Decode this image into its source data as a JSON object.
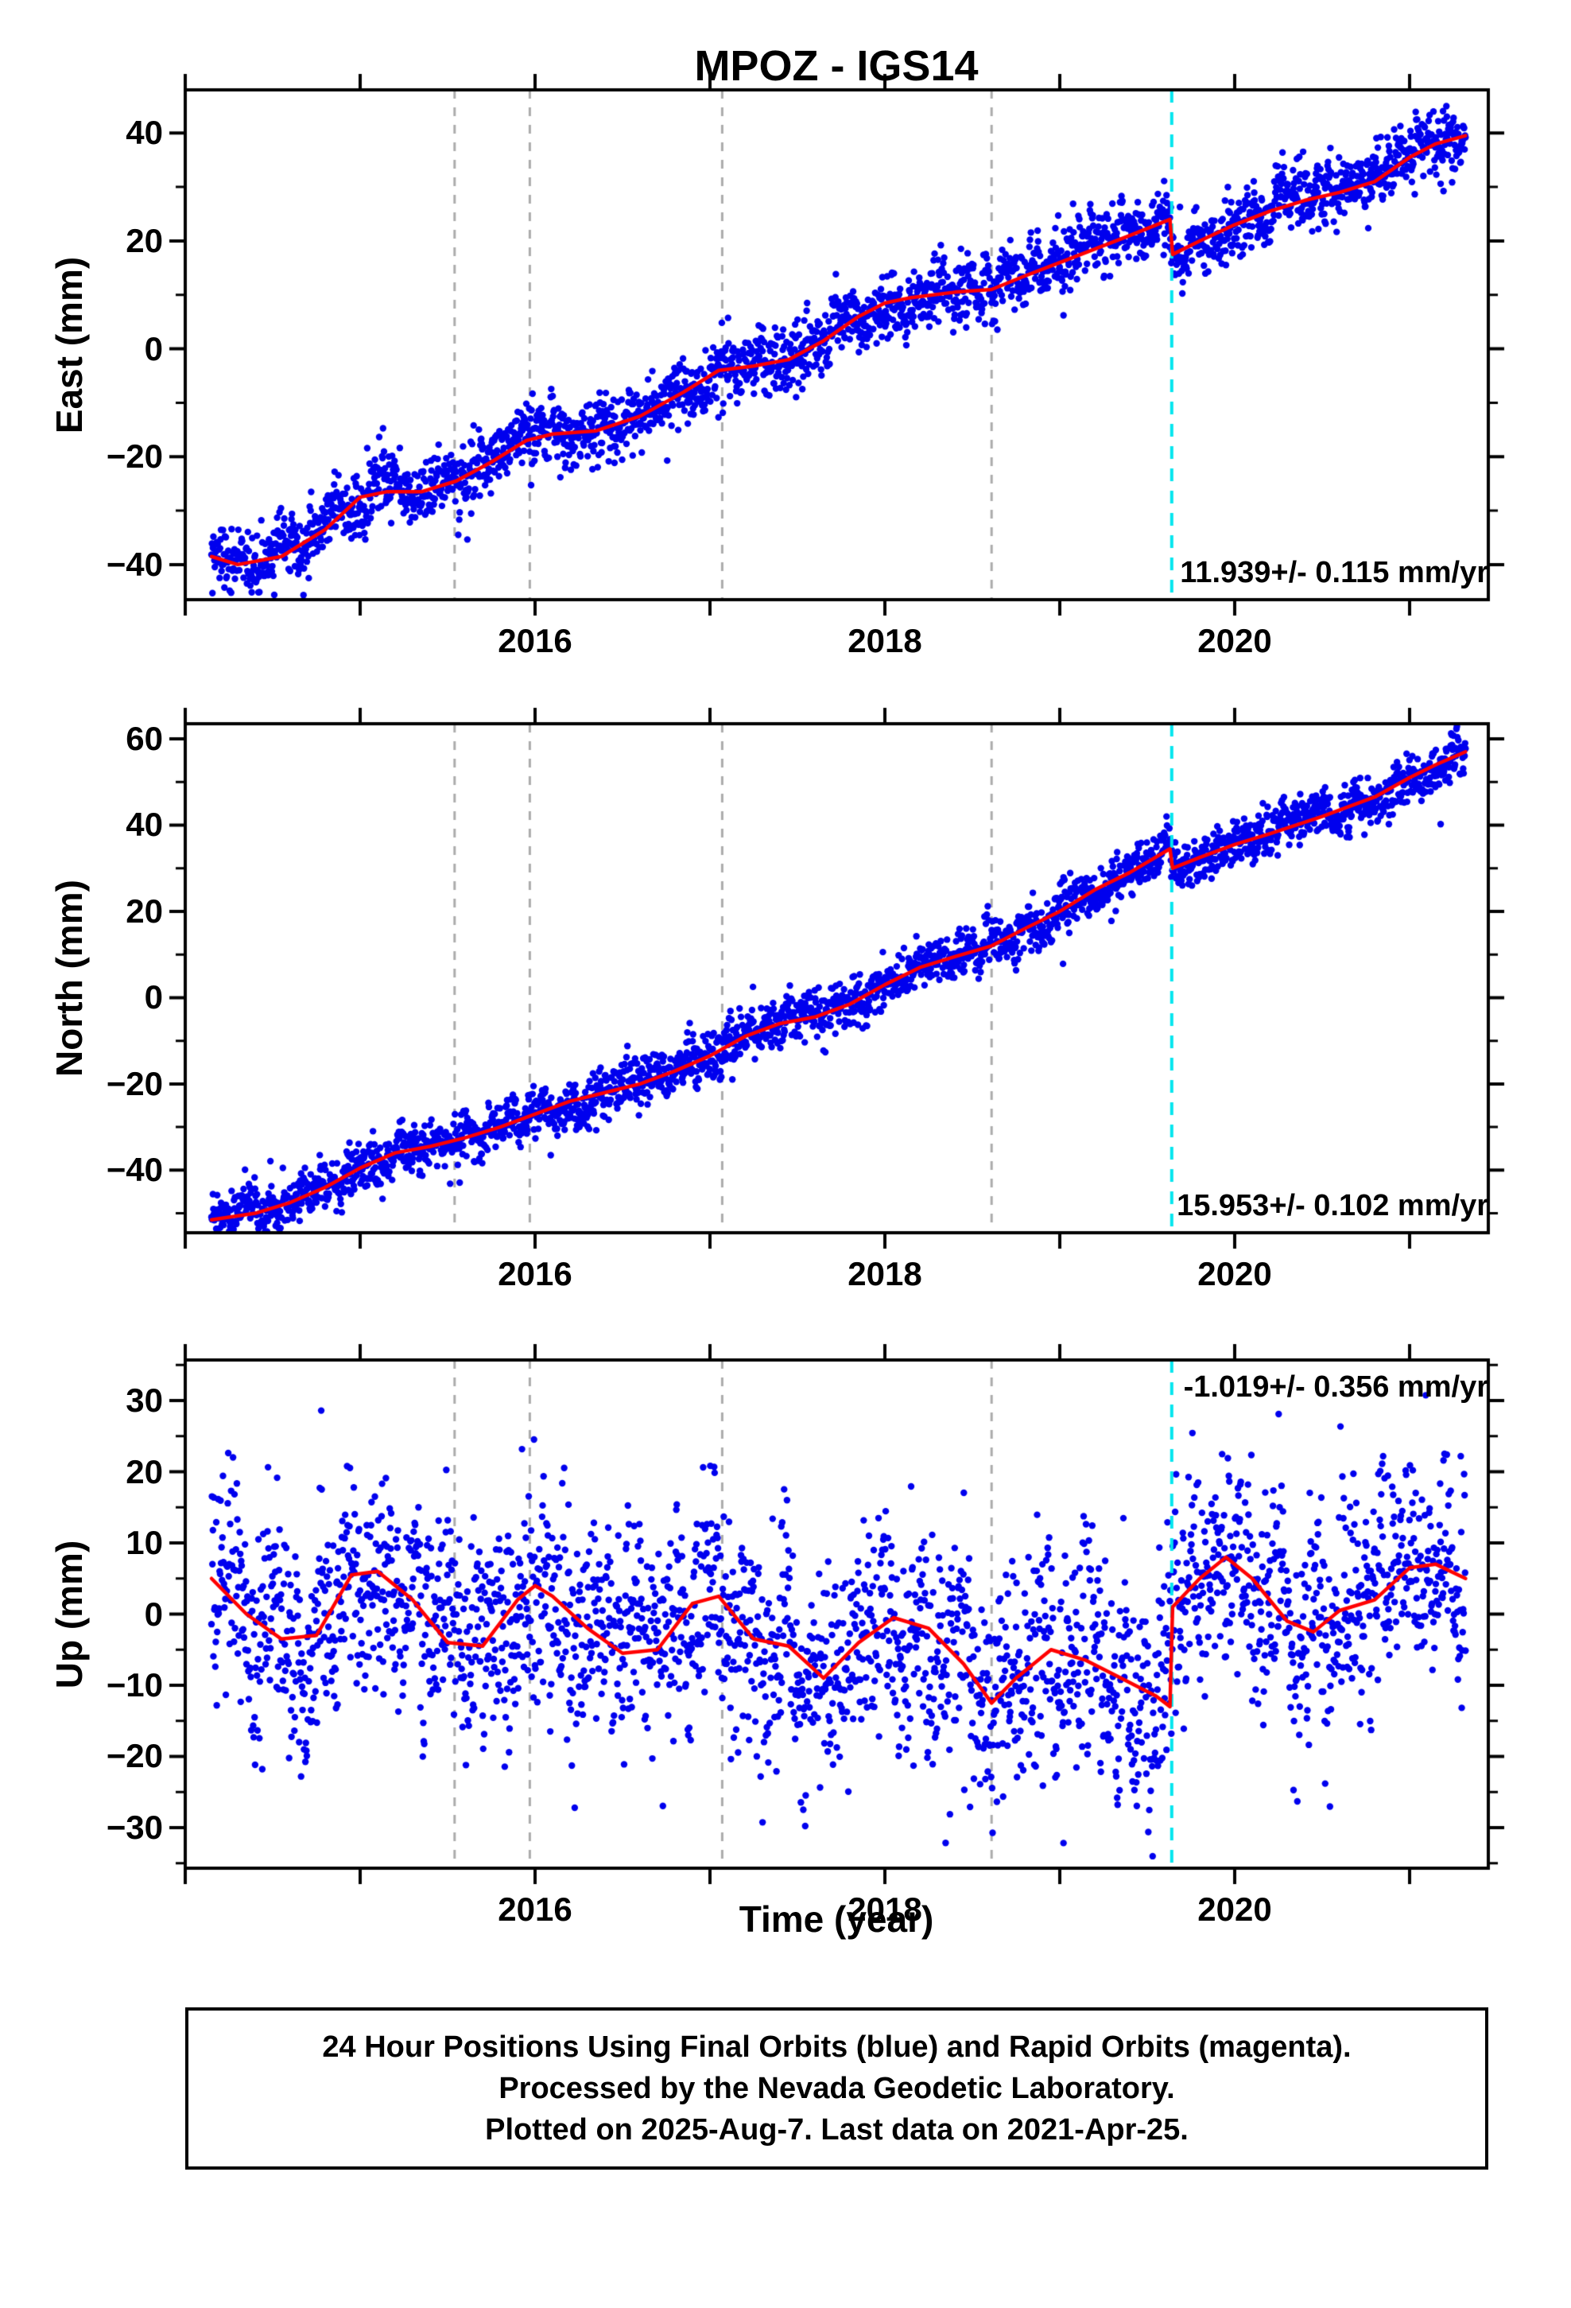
{
  "title": "MPOZ - IGS14",
  "xlabel": "Time (year)",
  "footer": {
    "lines": [
      "24 Hour Positions Using Final Orbits (blue) and Rapid Orbits (magenta).",
      "Processed by the Nevada Geodetic Laboratory.",
      "Plotted on 2025-Aug-7. Last data on 2021-Apr-25."
    ]
  },
  "colors": {
    "points": "#0000EE",
    "trend": "#FF0000",
    "event_line": "#ABABAB",
    "step_line": "#00E5EE",
    "frame": "#000000",
    "text": "#000000",
    "background": "#FFFFFF"
  },
  "chart_data": [
    {
      "type": "scatter",
      "name": "east",
      "ylabel": "East (mm)",
      "rate_label": "11.939+/- 0.115 mm/yr",
      "rate_label_pos": "bottom-right",
      "xlim": [
        2014.0,
        2021.45
      ],
      "ylim": [
        -46.5,
        48.0
      ],
      "yticks_major": [
        -40,
        -20,
        0,
        20,
        40
      ],
      "ytick_minor_step": 10,
      "xticks_labeled": [
        2016,
        2018,
        2020
      ],
      "event_lines": [
        2015.54,
        2015.97,
        2017.07,
        2018.61
      ],
      "step_line": 2019.64,
      "scatter": {
        "t_start": 2014.15,
        "t_end": 2021.32,
        "per_year": 365,
        "sigma": 3.3
      },
      "trend": [
        [
          2014.15,
          -38.5
        ],
        [
          2014.3,
          -40.0
        ],
        [
          2014.55,
          -38.5
        ],
        [
          2014.8,
          -33.5
        ],
        [
          2015.0,
          -27.5
        ],
        [
          2015.15,
          -26.5
        ],
        [
          2015.35,
          -26.5
        ],
        [
          2015.55,
          -24.5
        ],
        [
          2015.75,
          -21.0
        ],
        [
          2015.95,
          -17.0
        ],
        [
          2016.1,
          -15.8
        ],
        [
          2016.35,
          -15.2
        ],
        [
          2016.6,
          -12.5
        ],
        [
          2016.85,
          -8.0
        ],
        [
          2017.05,
          -4.0
        ],
        [
          2017.25,
          -3.2
        ],
        [
          2017.45,
          -2.0
        ],
        [
          2017.65,
          1.5
        ],
        [
          2017.85,
          6.0
        ],
        [
          2018.0,
          8.5
        ],
        [
          2018.15,
          9.5
        ],
        [
          2018.4,
          10.5
        ],
        [
          2018.61,
          11.0
        ],
        [
          2018.8,
          13.5
        ],
        [
          2019.0,
          16.0
        ],
        [
          2019.2,
          18.5
        ],
        [
          2019.4,
          21.0
        ],
        [
          2019.63,
          24.0
        ],
        [
          2019.645,
          17.5
        ],
        [
          2019.8,
          20.0
        ],
        [
          2020.0,
          23.0
        ],
        [
          2020.2,
          25.5
        ],
        [
          2020.4,
          27.5
        ],
        [
          2020.6,
          29.0
        ],
        [
          2020.8,
          31.0
        ],
        [
          2021.0,
          35.5
        ],
        [
          2021.15,
          38.0
        ],
        [
          2021.32,
          39.5
        ]
      ]
    },
    {
      "type": "scatter",
      "name": "north",
      "ylabel": "North (mm)",
      "rate_label": "15.953+/- 0.102 mm/yr",
      "rate_label_pos": "bottom-right",
      "xlim": [
        2014.0,
        2021.45
      ],
      "ylim": [
        -54.5,
        63.5
      ],
      "yticks_major": [
        -40,
        -20,
        0,
        20,
        40,
        60
      ],
      "ytick_minor_step": 10,
      "xticks_labeled": [
        2016,
        2018,
        2020
      ],
      "event_lines": [
        2015.54,
        2015.97,
        2017.07,
        2018.61
      ],
      "step_line": 2019.64,
      "scatter": {
        "t_start": 2014.15,
        "t_end": 2021.32,
        "per_year": 365,
        "sigma": 3.0
      },
      "trend": [
        [
          2014.15,
          -51.5
        ],
        [
          2014.4,
          -50.0
        ],
        [
          2014.6,
          -47.5
        ],
        [
          2014.8,
          -44.0
        ],
        [
          2015.0,
          -39.5
        ],
        [
          2015.2,
          -36.0
        ],
        [
          2015.4,
          -34.5
        ],
        [
          2015.6,
          -32.5
        ],
        [
          2015.8,
          -30.0
        ],
        [
          2016.0,
          -27.0
        ],
        [
          2016.2,
          -24.0
        ],
        [
          2016.4,
          -22.0
        ],
        [
          2016.6,
          -20.0
        ],
        [
          2016.8,
          -17.0
        ],
        [
          2017.0,
          -13.5
        ],
        [
          2017.2,
          -9.0
        ],
        [
          2017.4,
          -6.0
        ],
        [
          2017.6,
          -4.5
        ],
        [
          2017.8,
          -1.5
        ],
        [
          2018.0,
          3.0
        ],
        [
          2018.2,
          7.0
        ],
        [
          2018.4,
          9.5
        ],
        [
          2018.61,
          12.0
        ],
        [
          2018.8,
          16.0
        ],
        [
          2019.0,
          20.0
        ],
        [
          2019.2,
          25.0
        ],
        [
          2019.4,
          29.0
        ],
        [
          2019.63,
          34.5
        ],
        [
          2019.645,
          30.0
        ],
        [
          2019.8,
          32.5
        ],
        [
          2020.0,
          35.5
        ],
        [
          2020.2,
          38.0
        ],
        [
          2020.5,
          42.0
        ],
        [
          2020.8,
          46.5
        ],
        [
          2021.0,
          51.0
        ],
        [
          2021.15,
          54.0
        ],
        [
          2021.32,
          57.0
        ]
      ]
    },
    {
      "type": "scatter",
      "name": "up",
      "ylabel": "Up (mm)",
      "rate_label": "-1.019+/- 0.356 mm/yr",
      "rate_label_pos": "top-right",
      "xlim": [
        2014.0,
        2021.45
      ],
      "ylim": [
        -35.7,
        35.7
      ],
      "yticks_major": [
        -30,
        -20,
        -10,
        0,
        10,
        20,
        30
      ],
      "ytick_minor_step": 5,
      "xticks_labeled": [
        2016,
        2018,
        2020
      ],
      "event_lines": [
        2015.54,
        2015.97,
        2017.07,
        2018.61
      ],
      "step_line": 2019.64,
      "scatter": {
        "t_start": 2014.15,
        "t_end": 2021.32,
        "per_year": 365,
        "sigma": 8.5
      },
      "trend": [
        [
          2014.15,
          5.0
        ],
        [
          2014.35,
          0.0
        ],
        [
          2014.55,
          -3.5
        ],
        [
          2014.75,
          -3.0
        ],
        [
          2014.95,
          5.5
        ],
        [
          2015.1,
          6.0
        ],
        [
          2015.3,
          2.0
        ],
        [
          2015.5,
          -4.0
        ],
        [
          2015.7,
          -4.5
        ],
        [
          2015.9,
          2.0
        ],
        [
          2016.0,
          4.0
        ],
        [
          2016.1,
          2.5
        ],
        [
          2016.3,
          -2.0
        ],
        [
          2016.5,
          -5.5
        ],
        [
          2016.7,
          -5.0
        ],
        [
          2016.9,
          1.5
        ],
        [
          2017.05,
          2.5
        ],
        [
          2017.25,
          -3.5
        ],
        [
          2017.45,
          -4.5
        ],
        [
          2017.65,
          -9.0
        ],
        [
          2017.85,
          -4.0
        ],
        [
          2018.05,
          -0.5
        ],
        [
          2018.25,
          -2.0
        ],
        [
          2018.45,
          -7.0
        ],
        [
          2018.61,
          -12.5
        ],
        [
          2018.75,
          -9.0
        ],
        [
          2018.95,
          -5.0
        ],
        [
          2019.15,
          -6.5
        ],
        [
          2019.35,
          -9.0
        ],
        [
          2019.55,
          -11.5
        ],
        [
          2019.63,
          -13.0
        ],
        [
          2019.645,
          1.0
        ],
        [
          2019.8,
          5.0
        ],
        [
          2019.95,
          8.0
        ],
        [
          2020.1,
          5.0
        ],
        [
          2020.3,
          -1.0
        ],
        [
          2020.45,
          -2.5
        ],
        [
          2020.6,
          0.5
        ],
        [
          2020.8,
          2.0
        ],
        [
          2021.0,
          6.5
        ],
        [
          2021.15,
          7.0
        ],
        [
          2021.32,
          5.0
        ]
      ]
    }
  ]
}
